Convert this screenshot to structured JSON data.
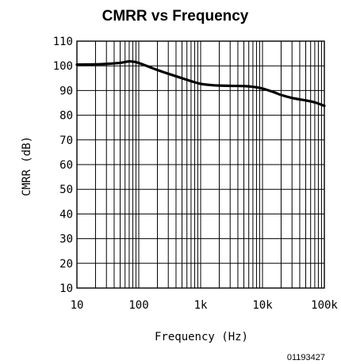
{
  "chart_data": {
    "type": "line",
    "title": "CMRR vs Frequency",
    "xlabel": "Frequency (Hz)",
    "ylabel": "CMRR (dB)",
    "x_scale": "log",
    "xlim": [
      10,
      100000
    ],
    "ylim": [
      10,
      110
    ],
    "grid": true,
    "x_ticks": [
      10,
      100,
      1000,
      10000,
      100000
    ],
    "x_tick_labels": [
      "10",
      "100",
      "1k",
      "10k",
      "100k"
    ],
    "y_ticks": [
      10,
      20,
      30,
      40,
      50,
      60,
      70,
      80,
      90,
      100,
      110
    ],
    "y_tick_labels": [
      "10",
      "20",
      "30",
      "40",
      "50",
      "60",
      "70",
      "80",
      "90",
      "100",
      "110"
    ],
    "series": [
      {
        "x": [
          10,
          20,
          30,
          50,
          70,
          90,
          110,
          150,
          200,
          300,
          500,
          700,
          1000,
          1500,
          2000,
          3000,
          5000,
          7000,
          10000,
          15000,
          20000,
          30000,
          50000,
          70000,
          100000
        ],
        "y": [
          100.5,
          100.6,
          100.8,
          101.2,
          101.8,
          101.5,
          100.8,
          99.5,
          98.3,
          96.8,
          95,
          93.8,
          92.7,
          92.2,
          92,
          91.9,
          91.8,
          91.5,
          90.8,
          89.4,
          88.2,
          87,
          86,
          85.2,
          83.8
        ],
        "color": "#000000"
      }
    ]
  },
  "figure_code": "01193427"
}
